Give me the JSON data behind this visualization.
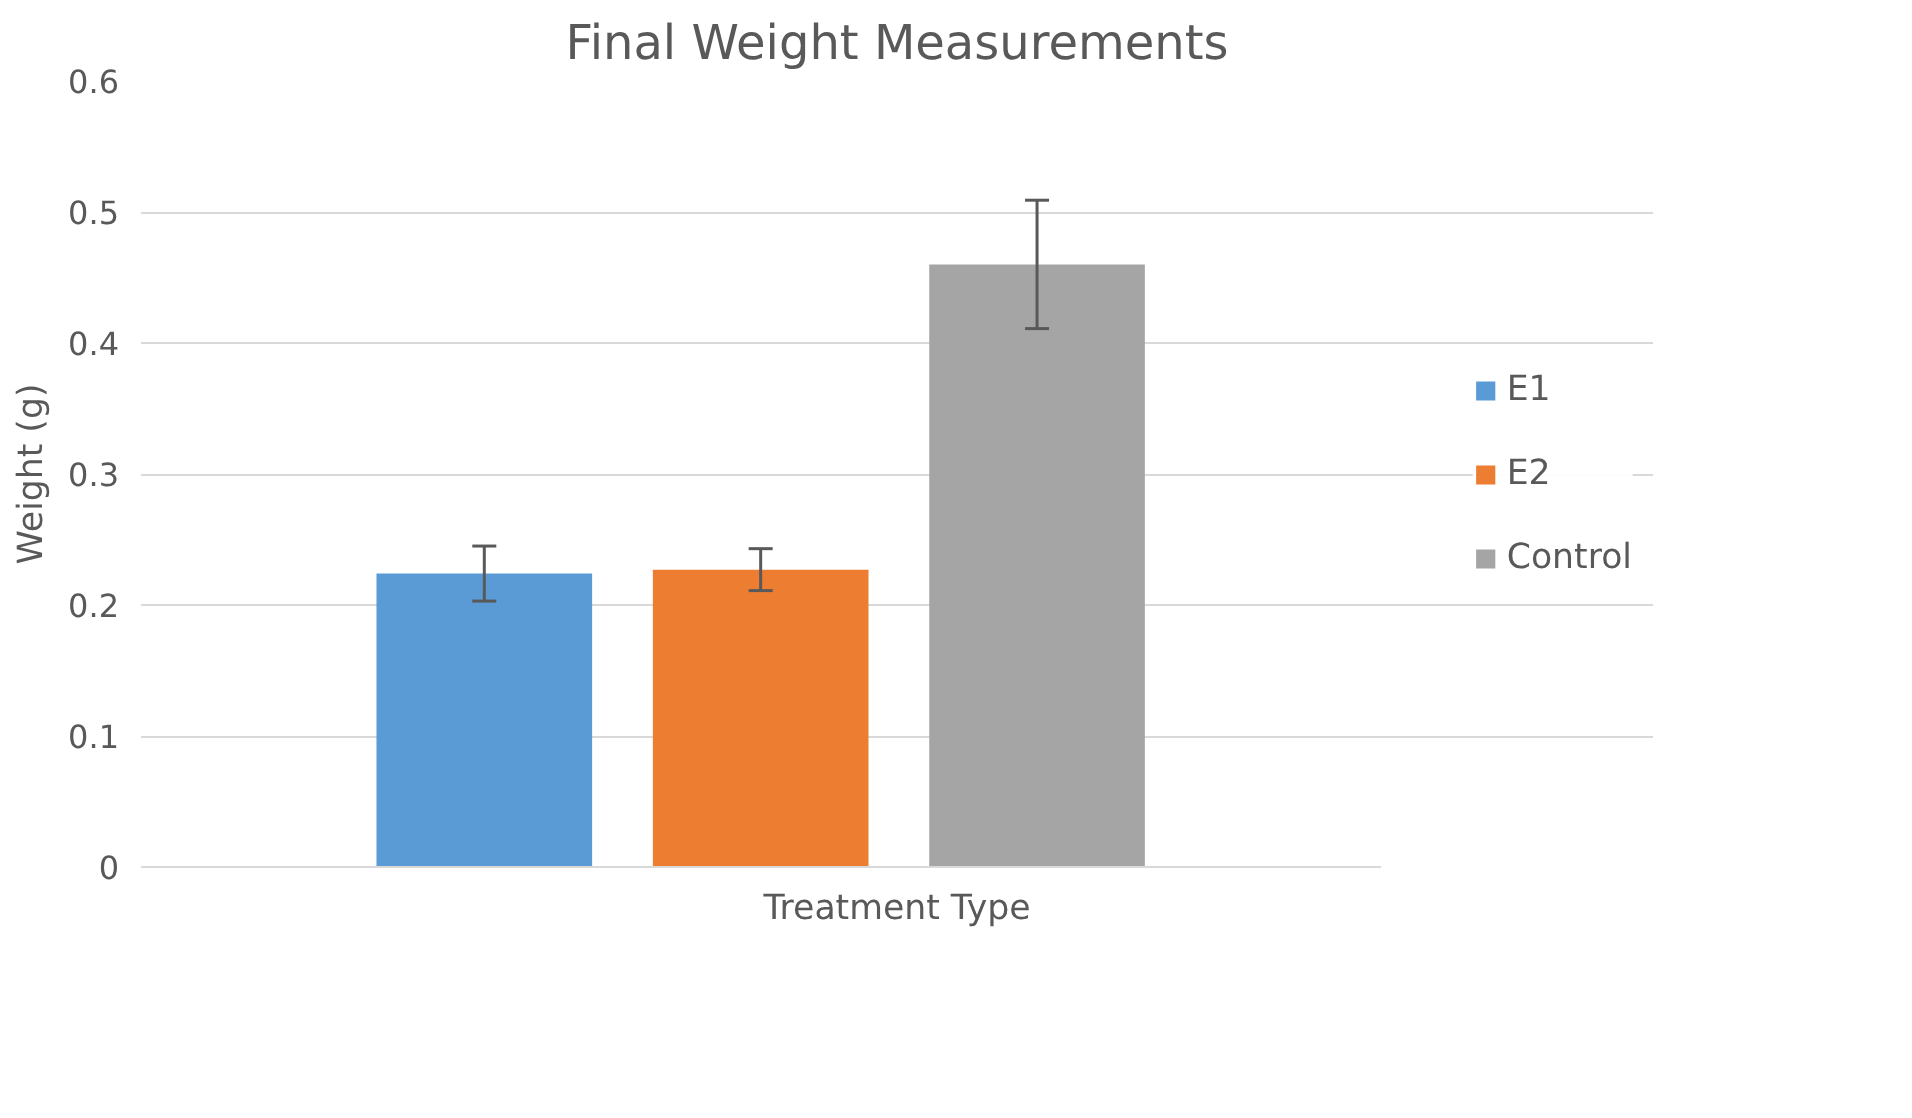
{
  "chart_data": {
    "type": "bar",
    "title": "Final Weight Measurements",
    "xlabel": "Treatment Type",
    "ylabel": "Weight (g)",
    "categories": [
      null
    ],
    "series": [
      {
        "name": "E1",
        "color": "#5b9bd5",
        "values": [
          0.224
        ],
        "errors": [
          0.021
        ]
      },
      {
        "name": "E2",
        "color": "#ed7d31",
        "values": [
          0.227
        ],
        "errors": [
          0.016
        ]
      },
      {
        "name": "Control",
        "color": "#a5a5a5",
        "values": [
          0.46
        ],
        "errors": [
          0.049
        ]
      }
    ],
    "ylim": [
      0,
      0.6
    ],
    "yticks": [
      0,
      0.1,
      0.2,
      0.3,
      0.4,
      0.5,
      0.6
    ],
    "grid": "y",
    "legend": "right"
  }
}
